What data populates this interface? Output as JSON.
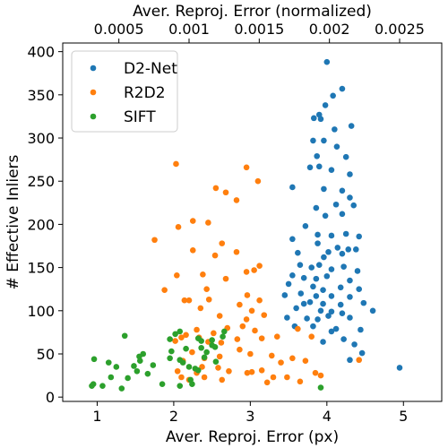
{
  "chart_data": {
    "type": "scatter",
    "xlabel": "Aver. Reproj. Error (px)",
    "ylabel": "# Effective Inliers",
    "top_xlabel": "Aver. Reproj. Error (normalized)",
    "xlim": [
      0.55,
      5.5
    ],
    "ylim": [
      -5,
      410
    ],
    "top_xlim": [
      0.0001,
      0.0028
    ],
    "x_ticks": [
      1,
      2,
      3,
      4,
      5
    ],
    "y_ticks": [
      0,
      50,
      100,
      150,
      200,
      250,
      300,
      350,
      400
    ],
    "top_x_ticks": [
      "0.0005",
      "0.001",
      "0.0015",
      "0.002",
      "0.0025"
    ],
    "top_x_tick_values": [
      0.0005,
      0.001,
      0.0015,
      0.002,
      0.0025
    ],
    "grid": false,
    "legend_position": "top-left",
    "series": [
      {
        "name": "D2-Net",
        "color": "#1f77b4",
        "points": [
          [
            4.0,
            388
          ],
          [
            4.2,
            357
          ],
          [
            4.08,
            349
          ],
          [
            3.98,
            338
          ],
          [
            3.92,
            322
          ],
          [
            3.83,
            323
          ],
          [
            3.9,
            327
          ],
          [
            4.32,
            314
          ],
          [
            4.1,
            310
          ],
          [
            3.82,
            297
          ],
          [
            3.96,
            297
          ],
          [
            4.13,
            290
          ],
          [
            3.87,
            279
          ],
          [
            4.25,
            278
          ],
          [
            3.78,
            266
          ],
          [
            3.9,
            267
          ],
          [
            4.06,
            263
          ],
          [
            4.3,
            258
          ],
          [
            3.55,
            243
          ],
          [
            3.96,
            241
          ],
          [
            4.2,
            239
          ],
          [
            4.3,
            231
          ],
          [
            3.86,
            219
          ],
          [
            4.12,
            223
          ],
          [
            4.35,
            222
          ],
          [
            3.98,
            210
          ],
          [
            4.2,
            212
          ],
          [
            3.72,
            198
          ],
          [
            3.88,
            188
          ],
          [
            4.06,
            187
          ],
          [
            4.25,
            189
          ],
          [
            4.42,
            186
          ],
          [
            3.55,
            183
          ],
          [
            3.88,
            178
          ],
          [
            4.14,
            173
          ],
          [
            4.28,
            171
          ],
          [
            4.38,
            171
          ],
          [
            3.62,
            167
          ],
          [
            3.96,
            162
          ],
          [
            4.02,
            168
          ],
          [
            4.2,
            166
          ],
          [
            3.65,
            153
          ],
          [
            3.8,
            150
          ],
          [
            3.9,
            153
          ],
          [
            4.06,
            148
          ],
          [
            4.22,
            151
          ],
          [
            4.4,
            146
          ],
          [
            3.55,
            141
          ],
          [
            3.7,
            138
          ],
          [
            3.86,
            137
          ],
          [
            4.0,
            140
          ],
          [
            4.3,
            135
          ],
          [
            3.5,
            131
          ],
          [
            3.82,
            128
          ],
          [
            3.95,
            124
          ],
          [
            4.18,
            127
          ],
          [
            4.42,
            125
          ],
          [
            3.66,
            120
          ],
          [
            3.86,
            117
          ],
          [
            4.06,
            117
          ],
          [
            4.3,
            116
          ],
          [
            3.45,
            118
          ],
          [
            3.7,
            108
          ],
          [
            3.78,
            110
          ],
          [
            3.95,
            108
          ],
          [
            4.18,
            107
          ],
          [
            4.48,
            109
          ],
          [
            3.6,
            103
          ],
          [
            3.92,
            100
          ],
          [
            4.06,
            99
          ],
          [
            4.2,
            97
          ],
          [
            4.6,
            100
          ],
          [
            3.48,
            92
          ],
          [
            3.74,
            91
          ],
          [
            3.88,
            90
          ],
          [
            4.02,
            94
          ],
          [
            4.3,
            92
          ],
          [
            3.58,
            82
          ],
          [
            3.82,
            82
          ],
          [
            4.12,
            79
          ],
          [
            4.44,
            78
          ],
          [
            4.06,
            76
          ],
          [
            4.22,
            67
          ],
          [
            3.95,
            64
          ],
          [
            4.36,
            61
          ],
          [
            4.46,
            51
          ],
          [
            4.3,
            43
          ],
          [
            4.95,
            34
          ]
        ]
      },
      {
        "name": "R2D2",
        "color": "#ff7f0e",
        "points": [
          [
            2.03,
            270
          ],
          [
            2.95,
            266
          ],
          [
            3.1,
            250
          ],
          [
            2.82,
            228
          ],
          [
            2.55,
            242
          ],
          [
            2.68,
            237
          ],
          [
            2.06,
            197
          ],
          [
            2.25,
            204
          ],
          [
            2.45,
            202
          ],
          [
            1.75,
            182
          ],
          [
            2.63,
            178
          ],
          [
            2.25,
            170
          ],
          [
            2.82,
            168
          ],
          [
            2.54,
            164
          ],
          [
            2.38,
            142
          ],
          [
            2.04,
            141
          ],
          [
            3.05,
            147
          ],
          [
            3.12,
            152
          ],
          [
            2.95,
            145
          ],
          [
            2.68,
            137
          ],
          [
            1.88,
            124
          ],
          [
            2.43,
            125
          ],
          [
            2.14,
            112
          ],
          [
            2.2,
            112
          ],
          [
            2.96,
            118
          ],
          [
            2.46,
            113
          ],
          [
            3.12,
            112
          ],
          [
            2.86,
            107
          ],
          [
            2.35,
            103
          ],
          [
            3.02,
            100
          ],
          [
            2.6,
            94
          ],
          [
            2.95,
            90
          ],
          [
            3.18,
            95
          ],
          [
            2.7,
            80
          ],
          [
            2.9,
            82
          ],
          [
            3.06,
            77
          ],
          [
            2.3,
            78
          ],
          [
            2.52,
            74
          ],
          [
            2.16,
            72
          ],
          [
            2.33,
            69
          ],
          [
            2.02,
            65
          ],
          [
            2.1,
            69
          ],
          [
            2.45,
            64
          ],
          [
            2.83,
            67
          ],
          [
            3.15,
            68
          ],
          [
            3.35,
            70
          ],
          [
            3.62,
            79
          ],
          [
            3.8,
            70
          ],
          [
            2.62,
            63
          ],
          [
            2.86,
            55
          ],
          [
            3.0,
            50
          ],
          [
            3.28,
            48
          ],
          [
            3.4,
            40
          ],
          [
            3.55,
            45
          ],
          [
            3.72,
            42
          ],
          [
            2.24,
            52
          ],
          [
            2.4,
            45
          ],
          [
            2.6,
            47
          ],
          [
            2.12,
            42
          ],
          [
            2.37,
            35
          ],
          [
            2.58,
            34
          ],
          [
            2.72,
            30
          ],
          [
            2.96,
            28
          ],
          [
            3.15,
            31
          ],
          [
            3.3,
            23
          ],
          [
            3.48,
            23
          ],
          [
            3.65,
            18
          ],
          [
            3.22,
            17
          ],
          [
            2.1,
            23
          ],
          [
            2.2,
            20
          ],
          [
            2.4,
            23
          ],
          [
            2.63,
            20
          ],
          [
            2.05,
            30
          ],
          [
            2.3,
            28
          ],
          [
            3.92,
            25
          ],
          [
            4.42,
            43
          ],
          [
            3.02,
            29
          ],
          [
            3.85,
            28
          ]
        ]
      },
      {
        "name": "SIFT",
        "color": "#2ca02c",
        "points": [
          [
            0.93,
            13
          ],
          [
            0.96,
            44
          ],
          [
            0.95,
            15
          ],
          [
            1.07,
            13
          ],
          [
            1.18,
            23
          ],
          [
            1.32,
            10
          ],
          [
            1.15,
            40
          ],
          [
            1.25,
            35
          ],
          [
            1.36,
            71
          ],
          [
            1.4,
            22
          ],
          [
            1.48,
            36
          ],
          [
            1.52,
            30
          ],
          [
            1.56,
            42
          ],
          [
            1.6,
            50
          ],
          [
            1.66,
            27
          ],
          [
            1.73,
            37
          ],
          [
            1.55,
            47
          ],
          [
            1.85,
            15
          ],
          [
            1.95,
            45
          ],
          [
            1.95,
            67
          ],
          [
            2.02,
            73
          ],
          [
            2.08,
            76
          ],
          [
            1.97,
            53
          ],
          [
            2.12,
            40
          ],
          [
            2.16,
            56
          ],
          [
            2.2,
            35
          ],
          [
            2.28,
            33
          ],
          [
            2.22,
            20
          ],
          [
            2.24,
            15
          ],
          [
            2.08,
            13
          ],
          [
            2.32,
            68
          ],
          [
            2.36,
            57
          ],
          [
            2.4,
            46
          ],
          [
            2.43,
            52
          ],
          [
            2.5,
            66
          ],
          [
            2.54,
            58
          ],
          [
            2.55,
            41
          ],
          [
            2.64,
            70
          ],
          [
            2.66,
            76
          ],
          [
            2.32,
            31
          ],
          [
            2.08,
            43
          ],
          [
            2.36,
            65
          ],
          [
            2.5,
            60
          ],
          [
            3.92,
            11
          ]
        ]
      }
    ]
  }
}
